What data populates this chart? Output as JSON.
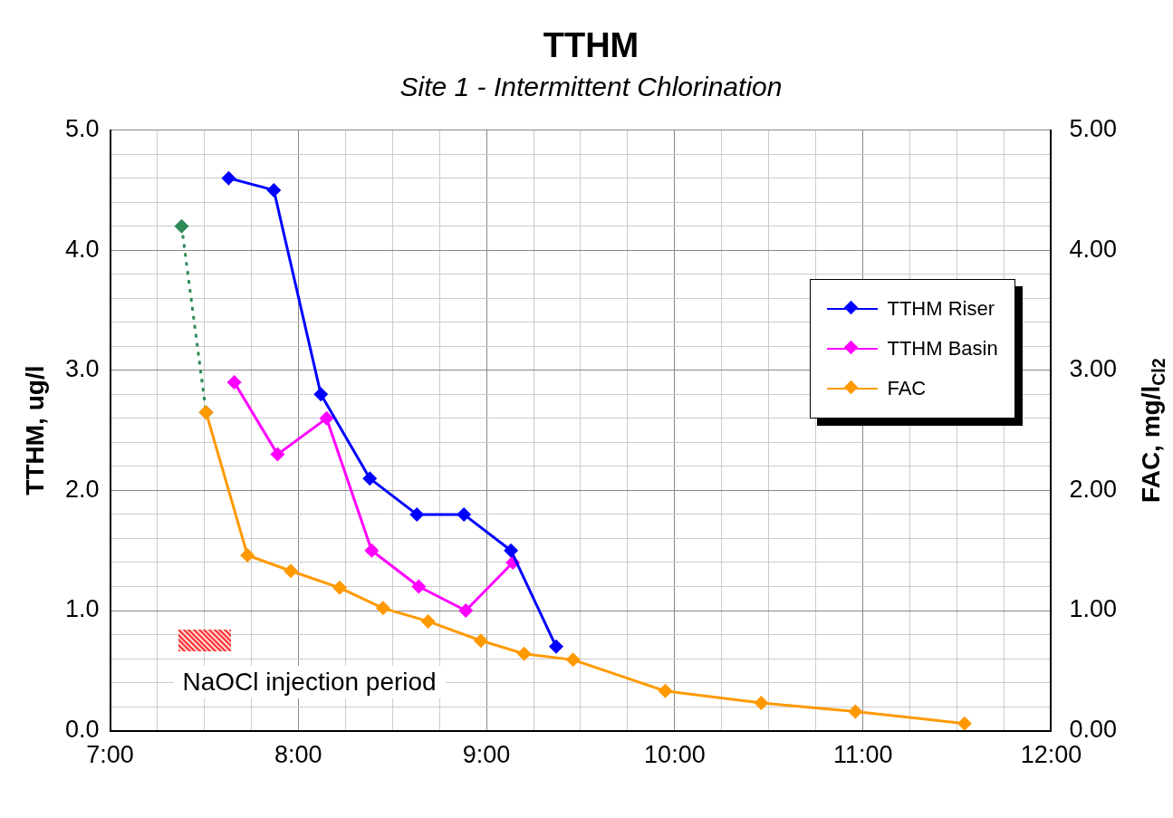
{
  "chart_data": {
    "type": "line",
    "title": "TTHM",
    "subtitle": "Site 1 - Intermittent Chlorination",
    "ylabel": "TTHM, ug/l",
    "y2label": "FAC, mg/l$_{Cl2}$",
    "xlim": [
      7,
      12
    ],
    "xticks": [
      {
        "value": 7,
        "label": "7:00"
      },
      {
        "value": 7.25,
        "label": null
      },
      {
        "value": 7.5,
        "label": null
      },
      {
        "value": 7.75,
        "label": null
      },
      {
        "value": 8,
        "label": "8:00"
      },
      {
        "value": 8.25,
        "label": null
      },
      {
        "value": 8.5,
        "label": null
      },
      {
        "value": 8.75,
        "label": null
      },
      {
        "value": 9,
        "label": "9:00"
      },
      {
        "value": 9.25,
        "label": null
      },
      {
        "value": 9.5,
        "label": null
      },
      {
        "value": 9.75,
        "label": null
      },
      {
        "value": 10,
        "label": "10:00"
      },
      {
        "value": 10.25,
        "label": null
      },
      {
        "value": 10.5,
        "label": null
      },
      {
        "value": 10.75,
        "label": null
      },
      {
        "value": 11,
        "label": "11:00"
      },
      {
        "value": 11.25,
        "label": null
      },
      {
        "value": 11.5,
        "label": null
      },
      {
        "value": 11.75,
        "label": null
      },
      {
        "value": 12,
        "label": "12:00"
      }
    ],
    "ylim": [
      0,
      5
    ],
    "yticks": [
      {
        "value": 0,
        "label": "0.0"
      },
      {
        "value": 0.2,
        "label": null
      },
      {
        "value": 0.4,
        "label": null
      },
      {
        "value": 0.6,
        "label": null
      },
      {
        "value": 0.8,
        "label": null
      },
      {
        "value": 1,
        "label": "1.0"
      },
      {
        "value": 1.2,
        "label": null
      },
      {
        "value": 1.4,
        "label": null
      },
      {
        "value": 1.6,
        "label": null
      },
      {
        "value": 1.8,
        "label": null
      },
      {
        "value": 2,
        "label": "2.0"
      },
      {
        "value": 2.2,
        "label": null
      },
      {
        "value": 2.4,
        "label": null
      },
      {
        "value": 2.6,
        "label": null
      },
      {
        "value": 2.8,
        "label": null
      },
      {
        "value": 3,
        "label": "3.0"
      },
      {
        "value": 3.2,
        "label": null
      },
      {
        "value": 3.4,
        "label": null
      },
      {
        "value": 3.6,
        "label": null
      },
      {
        "value": 3.8,
        "label": null
      },
      {
        "value": 4,
        "label": "4.0"
      },
      {
        "value": 4.2,
        "label": null
      },
      {
        "value": 4.4,
        "label": null
      },
      {
        "value": 4.6,
        "label": null
      },
      {
        "value": 4.8,
        "label": null
      },
      {
        "value": 5,
        "label": "5.0"
      }
    ],
    "y2lim": [
      0,
      5
    ],
    "y2ticks": [
      {
        "value": 0,
        "label": "0.00"
      },
      {
        "value": 1,
        "label": "1.00"
      },
      {
        "value": 2,
        "label": "2.00"
      },
      {
        "value": 3,
        "label": "3.00"
      },
      {
        "value": 4,
        "label": "4.00"
      },
      {
        "value": 5,
        "label": "5.00"
      }
    ],
    "grid": true,
    "legend": "right",
    "marker": "diamond",
    "line_style": "solid",
    "annotations": [
      "NaOCl injection period"
    ],
    "series": [
      {
        "name": "TTHM Riser",
        "color": "#0000ff",
        "x": [
          7.63,
          7.87,
          8.12,
          8.38,
          8.63,
          8.88,
          9.13,
          9.37
        ],
        "values": [
          4.6,
          4.5,
          2.8,
          2.1,
          1.8,
          1.8,
          1.5,
          0.7
        ]
      },
      {
        "name": "TTHM Basin",
        "color": "#ff00ff",
        "x": [
          7.66,
          7.89,
          8.15,
          8.39,
          8.64,
          8.89,
          9.14
        ],
        "values": [
          2.9,
          2.3,
          2.6,
          1.5,
          1.2,
          1.0,
          1.4
        ]
      },
      {
        "name": "FAC",
        "color": "#ff9900",
        "x": [
          7.51,
          7.73,
          7.96,
          8.22,
          8.45,
          8.69,
          8.97,
          9.2,
          9.46,
          9.95,
          10.46,
          10.96,
          11.54
        ],
        "values": [
          2.65,
          1.46,
          1.33,
          1.19,
          1.02,
          0.91,
          0.75,
          0.64,
          0.59,
          0.33,
          0.23,
          0.16,
          0.06
        ]
      },
      {
        "color": "#2e8b57",
        "line_style": "dotted",
        "x": [
          7.38,
          7.51
        ],
        "values": [
          4.2,
          2.65
        ]
      }
    ]
  }
}
